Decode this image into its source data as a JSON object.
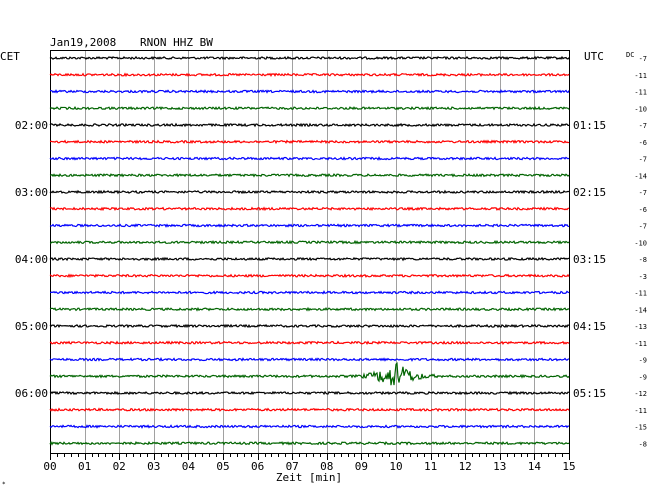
{
  "header": {
    "date": "Jan19,2008",
    "station": "RNON HHZ BW",
    "left_zone": "CET",
    "right_zone": "UTC",
    "dc_label": "DC"
  },
  "chart_data": {
    "type": "line",
    "title": "Jan19,2008   RNON HHZ BW",
    "xlabel": "Zeit [min]",
    "xlim": [
      0,
      15
    ],
    "x_ticks": [
      "00",
      "01",
      "02",
      "03",
      "04",
      "05",
      "06",
      "07",
      "08",
      "09",
      "10",
      "11",
      "12",
      "13",
      "14",
      "15"
    ],
    "grid": true,
    "left_hour_labels": [
      {
        "label": "02:00",
        "trace": 4
      },
      {
        "label": "03:00",
        "trace": 8
      },
      {
        "label": "04:00",
        "trace": 12
      },
      {
        "label": "05:00",
        "trace": 16
      },
      {
        "label": "06:00",
        "trace": 20
      }
    ],
    "right_hour_labels": [
      {
        "label": "01:15",
        "trace": 4
      },
      {
        "label": "02:15",
        "trace": 8
      },
      {
        "label": "03:15",
        "trace": 12
      },
      {
        "label": "04:15",
        "trace": 16
      },
      {
        "label": "05:15",
        "trace": 20
      }
    ],
    "trace_colors": [
      "#000000",
      "#ff0000",
      "#0000ff",
      "#006400"
    ],
    "dc_offsets": [
      -7,
      -11,
      -11,
      -10,
      -7,
      -6,
      -7,
      -14,
      -7,
      -6,
      -7,
      -10,
      -8,
      -3,
      -11,
      -14,
      -13,
      -11,
      -9,
      -9,
      -12,
      -11,
      -15,
      -8
    ],
    "event": {
      "trace": 19,
      "start_min": 8.7,
      "peak_min": 10.1,
      "end_min": 11.3
    }
  }
}
